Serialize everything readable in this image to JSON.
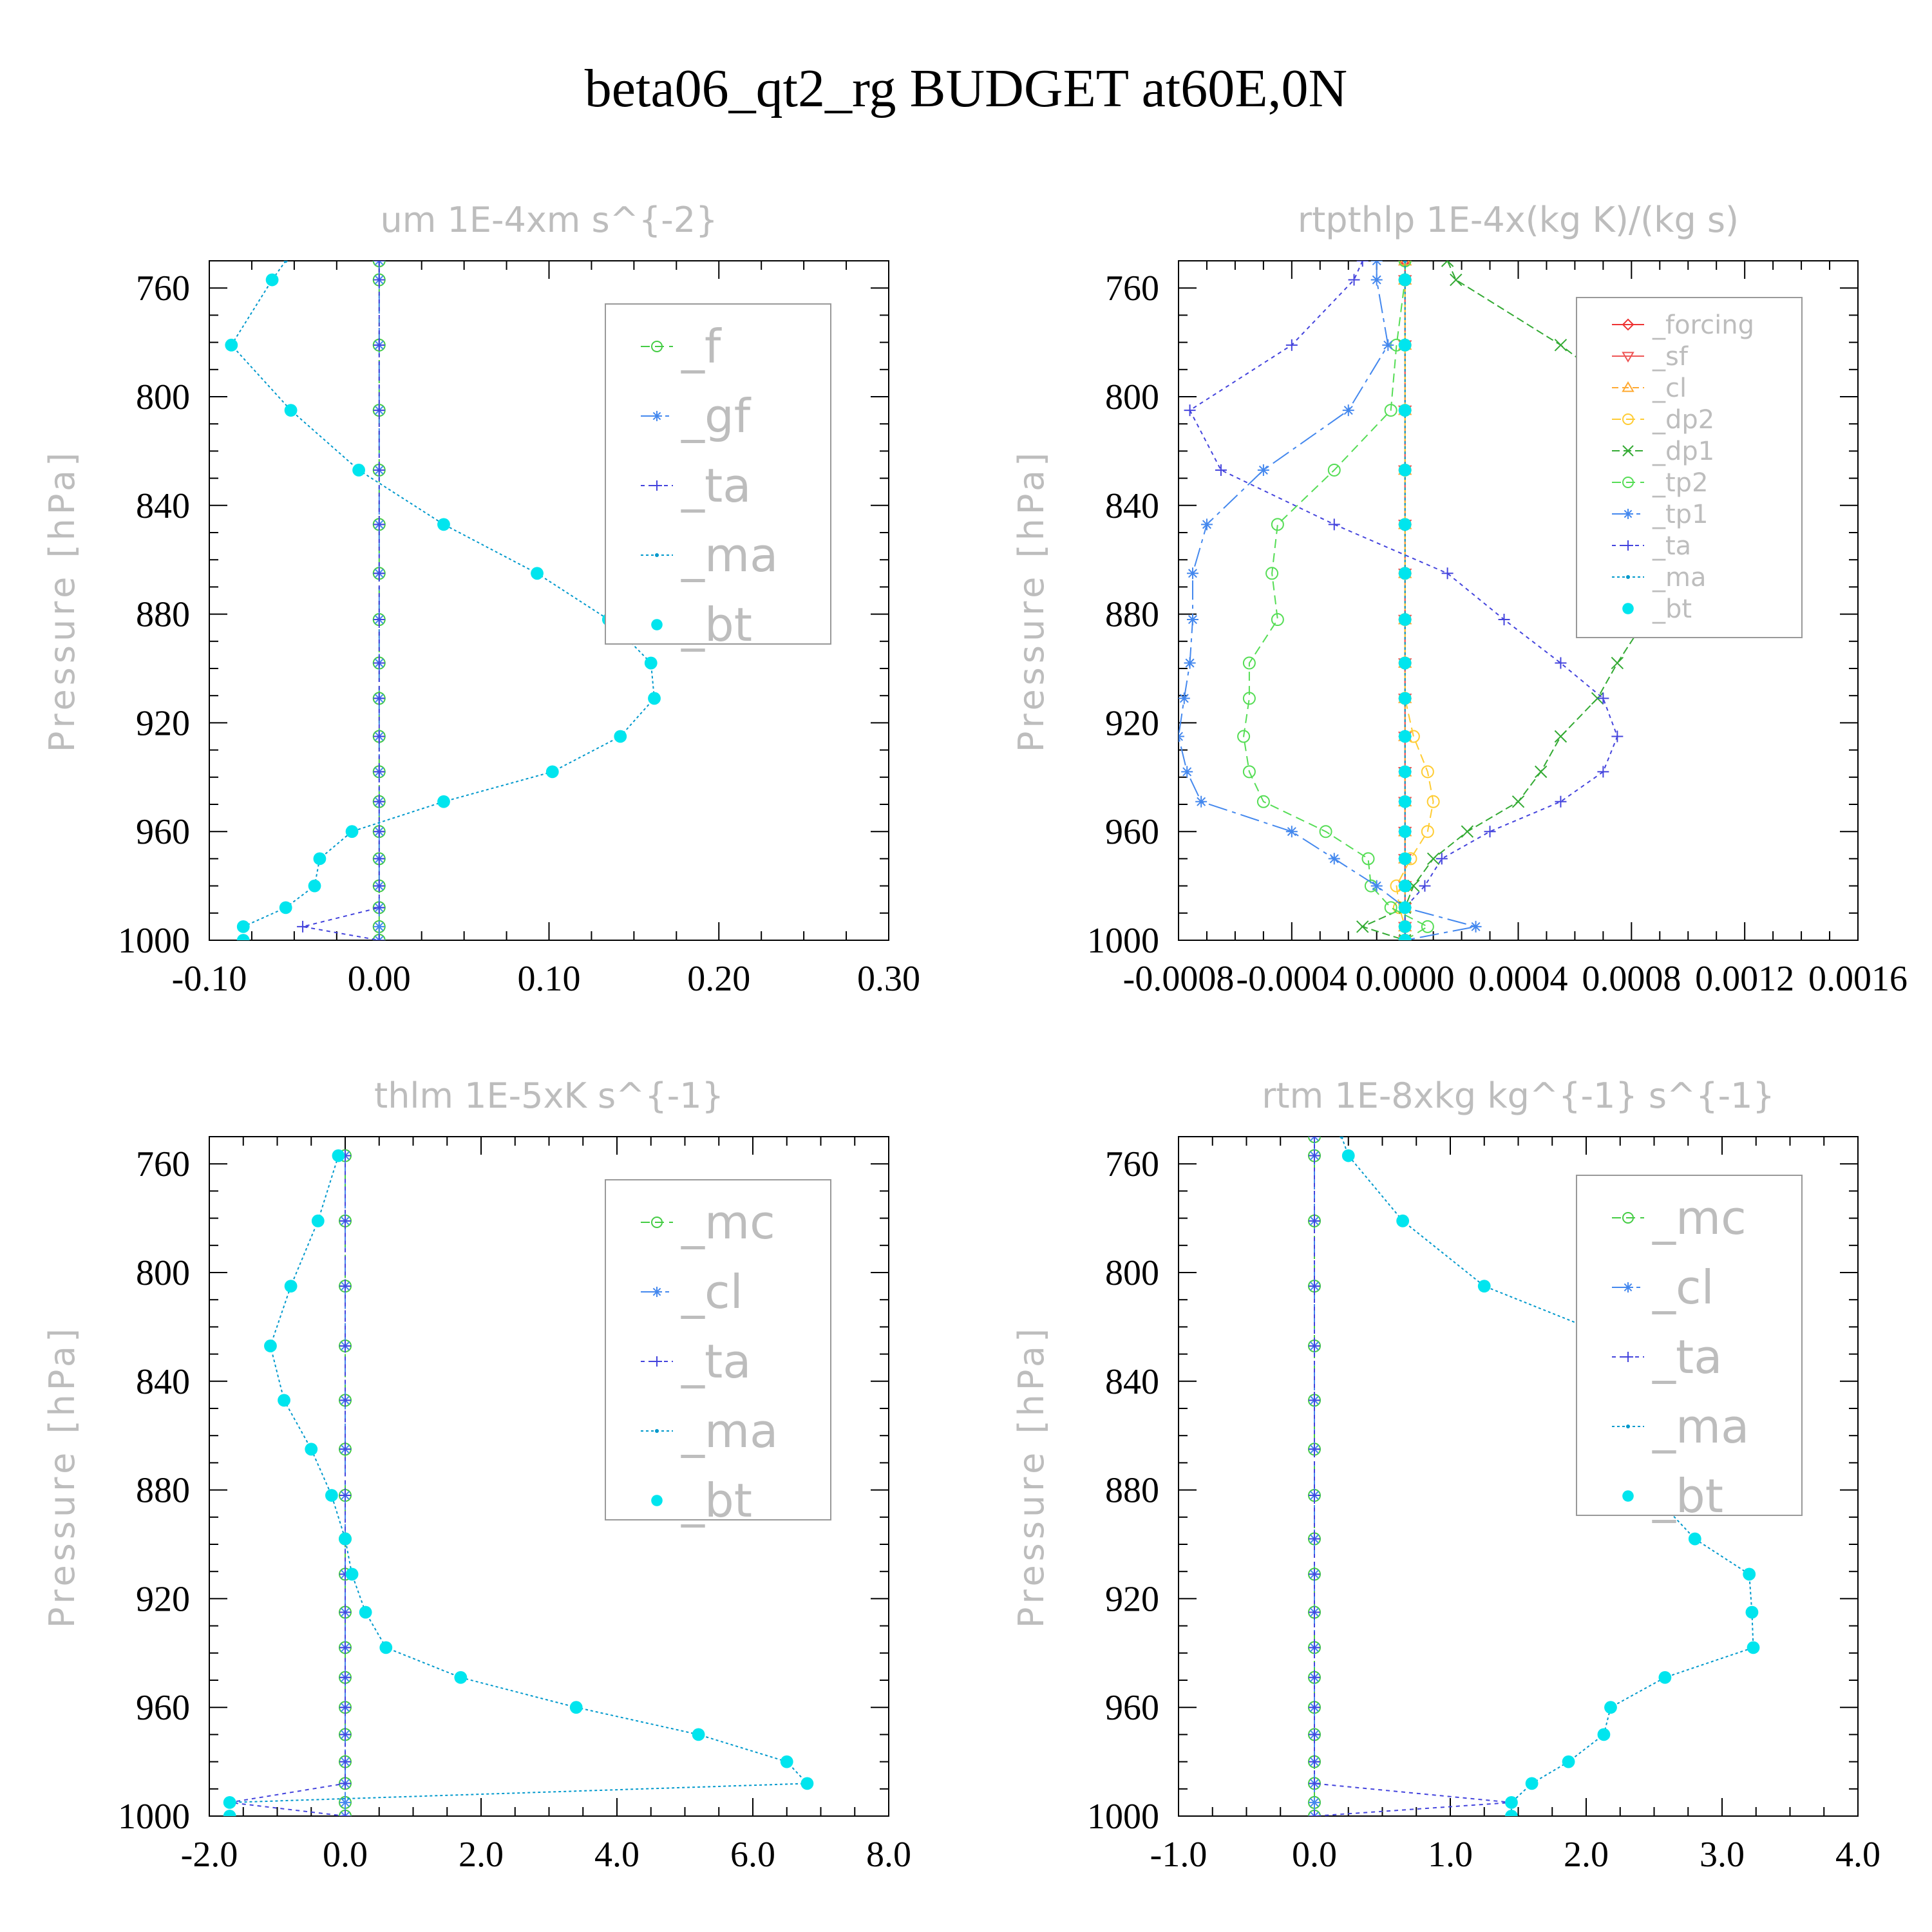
{
  "figure_title": "beta06_qt2_rg  BUDGET at60E,0N",
  "chart_data": [
    {
      "type": "line",
      "title": "um   1E-4xm s^{-2}",
      "ylabel": "Pressure [hPa]",
      "xlim": [
        -0.1,
        0.3
      ],
      "ylim": [
        1000,
        750
      ],
      "xticks": [
        -0.1,
        0.0,
        0.1,
        0.2,
        0.3
      ],
      "xtick_labels": [
        "-0.10",
        "0.00",
        "0.10",
        "0.20",
        "0.30"
      ],
      "yticks": [
        760,
        800,
        840,
        880,
        920,
        960,
        1000
      ],
      "ytick_labels": [
        "760",
        "800",
        "840",
        "880",
        "920",
        "960",
        "1000"
      ],
      "legend_position": "top-right",
      "legend_fontsize": "large",
      "y": [
        750,
        757,
        781,
        805,
        827,
        847,
        865,
        882,
        898,
        911,
        925,
        938,
        949,
        960,
        970,
        980,
        988,
        995,
        1000
      ],
      "series": [
        {
          "name": "_f",
          "color": "#44cc44",
          "marker": "circle",
          "values": [
            0,
            0,
            0,
            0,
            0,
            0,
            0,
            0,
            0,
            0,
            0,
            0,
            0,
            0,
            0,
            0,
            0,
            0,
            0
          ]
        },
        {
          "name": "_gf",
          "color": "#4488ee",
          "marker": "asterisk",
          "values": [
            0,
            0,
            0,
            0,
            0,
            0,
            0,
            0,
            0,
            0,
            0,
            0,
            0,
            0,
            0,
            0,
            0,
            0,
            0
          ]
        },
        {
          "name": "_ta",
          "color": "#4444dd",
          "marker": "plus",
          "values": [
            0,
            0,
            0,
            0,
            0,
            0,
            0,
            0,
            0,
            0,
            0,
            0,
            0,
            0,
            0,
            0,
            0,
            -0.045,
            0.0
          ]
        },
        {
          "name": "_ma",
          "color": "#0099cc",
          "marker": "dot",
          "values": [
            -0.055,
            -0.063,
            -0.087,
            -0.052,
            -0.012,
            0.038,
            0.093,
            0.135,
            0.16,
            0.162,
            0.142,
            0.102,
            0.038,
            -0.016,
            -0.035,
            -0.038,
            -0.055,
            -0.08,
            -0.08
          ]
        },
        {
          "name": "_bt",
          "color": "#00e5ee",
          "marker": "filled-circle",
          "values": [
            null,
            -0.063,
            -0.087,
            -0.052,
            -0.012,
            0.038,
            0.093,
            0.135,
            0.16,
            0.162,
            0.142,
            0.102,
            0.038,
            -0.016,
            -0.035,
            -0.038,
            -0.055,
            -0.08,
            -0.08
          ]
        }
      ]
    },
    {
      "type": "line",
      "title": "rtpthlp   1E-4x(kg K)/(kg s)",
      "ylabel": "Pressure [hPa]",
      "xlim": [
        -0.0008,
        0.0016
      ],
      "ylim": [
        1000,
        750
      ],
      "xticks": [
        -0.0008,
        -0.0004,
        0.0,
        0.0004,
        0.0008,
        0.0012,
        0.0016
      ],
      "xtick_labels": [
        "-0.0008",
        "-0.0004",
        "0.0000",
        "0.0004",
        "0.0008",
        "0.0012",
        "0.0016"
      ],
      "yticks": [
        760,
        800,
        840,
        880,
        920,
        960,
        1000
      ],
      "ytick_labels": [
        "760",
        "800",
        "840",
        "880",
        "920",
        "960",
        "1000"
      ],
      "legend_position": "top-right",
      "legend_fontsize": "small",
      "y": [
        750,
        757,
        781,
        805,
        827,
        847,
        865,
        882,
        898,
        911,
        925,
        938,
        949,
        960,
        970,
        980,
        988,
        995,
        1000
      ],
      "series": [
        {
          "name": "_forcing",
          "color": "#ee3333",
          "marker": "diamond",
          "values": [
            0,
            0,
            0,
            0,
            0,
            0,
            0,
            0,
            0,
            0,
            0,
            0,
            0,
            0,
            0,
            0,
            0,
            0,
            0
          ]
        },
        {
          "name": "_sf",
          "color": "#ee5555",
          "marker": "triangle-down",
          "values": [
            0,
            0,
            0,
            0,
            0,
            0,
            0,
            0,
            0,
            0,
            0,
            0,
            0,
            0,
            0,
            0,
            0,
            0,
            0
          ]
        },
        {
          "name": "_cl",
          "color": "#ffaa33",
          "marker": "triangle-up",
          "values": [
            0,
            0,
            0,
            0,
            0,
            0,
            0,
            0,
            0,
            0,
            0,
            0,
            0,
            0,
            0,
            0,
            0,
            0,
            0
          ]
        },
        {
          "name": "_dp2",
          "color": "#ffcc33",
          "marker": "circle",
          "values": [
            0,
            0,
            0,
            0,
            0,
            0,
            0,
            0,
            0,
            0,
            3e-05,
            8e-05,
            0.0001,
            8e-05,
            2e-05,
            -3e-05,
            -2e-05,
            0.0,
            0.0
          ]
        },
        {
          "name": "_dp1",
          "color": "#33aa33",
          "marker": "x",
          "values": [
            0.00015,
            0.00018,
            0.00055,
            0.00085,
            0.00125,
            0.00128,
            0.00096,
            0.00085,
            0.00075,
            0.00068,
            0.00055,
            0.00048,
            0.0004,
            0.00022,
            0.0001,
            3e-05,
            0.0,
            -0.00015,
            0.0
          ]
        },
        {
          "name": "_tp2",
          "color": "#55dd55",
          "marker": "circle",
          "values": [
            0.0,
            0.0,
            -3e-05,
            -5e-05,
            -0.00025,
            -0.00045,
            -0.00047,
            -0.00045,
            -0.00055,
            -0.00055,
            -0.00057,
            -0.00055,
            -0.0005,
            -0.00028,
            -0.00013,
            -0.00012,
            -5e-05,
            8e-05,
            0.0
          ]
        },
        {
          "name": "_tp1",
          "color": "#4488ee",
          "marker": "asterisk",
          "values": [
            -0.0001,
            -0.0001,
            -6e-05,
            -0.0002,
            -0.0005,
            -0.0007,
            -0.00075,
            -0.00075,
            -0.00076,
            -0.00078,
            -0.0008,
            -0.00077,
            -0.00072,
            -0.0004,
            -0.00025,
            -0.0001,
            0.0,
            0.00025,
            0.0
          ]
        },
        {
          "name": "_ta",
          "color": "#4444dd",
          "marker": "plus",
          "values": [
            -0.00015,
            -0.00018,
            -0.0004,
            -0.00076,
            -0.00065,
            -0.00025,
            0.00015,
            0.00035,
            0.00055,
            0.0007,
            0.00075,
            0.0007,
            0.00055,
            0.0003,
            0.00013,
            7e-05,
            0.0,
            0.0,
            0.0
          ]
        },
        {
          "name": "_ma",
          "color": "#0099cc",
          "marker": "dot",
          "values": [
            0,
            0,
            0,
            0,
            0,
            0,
            0,
            0,
            0,
            0,
            0,
            0,
            0,
            0,
            0,
            0,
            0,
            0,
            0
          ]
        },
        {
          "name": "_bt",
          "color": "#00e5ee",
          "marker": "filled-circle",
          "values": [
            null,
            0,
            0,
            0,
            0,
            0,
            0,
            0,
            0,
            0,
            0,
            0,
            0,
            0,
            0,
            0,
            0,
            0,
            0
          ]
        }
      ]
    },
    {
      "type": "line",
      "title": "thlm   1E-5xK s^{-1}",
      "ylabel": "Pressure [hPa]",
      "xlim": [
        -2.0,
        8.0
      ],
      "ylim": [
        1000,
        750
      ],
      "xticks": [
        -2.0,
        0.0,
        2.0,
        4.0,
        6.0,
        8.0
      ],
      "xtick_labels": [
        "-2.0",
        "0.0",
        "2.0",
        "4.0",
        "6.0",
        "8.0"
      ],
      "yticks": [
        760,
        800,
        840,
        880,
        920,
        960,
        1000
      ],
      "ytick_labels": [
        "760",
        "800",
        "840",
        "880",
        "920",
        "960",
        "1000"
      ],
      "legend_position": "top-right",
      "legend_fontsize": "large",
      "y": [
        757,
        781,
        805,
        827,
        847,
        865,
        882,
        898,
        911,
        925,
        938,
        949,
        960,
        970,
        980,
        988,
        995,
        1000
      ],
      "series": [
        {
          "name": "_mc",
          "color": "#44cc44",
          "marker": "circle",
          "values": [
            0,
            0,
            0,
            0,
            0,
            0,
            0,
            0,
            0,
            0,
            0,
            0,
            0,
            0,
            0,
            0,
            0,
            0
          ]
        },
        {
          "name": "_cl",
          "color": "#4488ee",
          "marker": "asterisk",
          "values": [
            0,
            0,
            0,
            0,
            0,
            0,
            0,
            0,
            0,
            0,
            0,
            0,
            0,
            0,
            0,
            0,
            0,
            0
          ]
        },
        {
          "name": "_ta",
          "color": "#4444dd",
          "marker": "plus",
          "values": [
            0,
            0,
            0,
            0,
            0,
            0,
            0,
            0,
            0,
            0,
            0,
            0,
            0,
            0,
            0,
            0,
            -1.7,
            0.0
          ]
        },
        {
          "name": "_ma",
          "color": "#0099cc",
          "marker": "dot",
          "values": [
            -0.1,
            -0.4,
            -0.8,
            -1.1,
            -0.9,
            -0.5,
            -0.2,
            0.0,
            0.1,
            0.3,
            0.6,
            1.7,
            3.4,
            5.2,
            6.5,
            6.8,
            -1.7,
            -1.7
          ]
        },
        {
          "name": "_bt",
          "color": "#00e5ee",
          "marker": "filled-circle",
          "values": [
            -0.1,
            -0.4,
            -0.8,
            -1.1,
            -0.9,
            -0.5,
            -0.2,
            0.0,
            0.1,
            0.3,
            0.6,
            1.7,
            3.4,
            5.2,
            6.5,
            6.8,
            -1.7,
            -1.7
          ]
        }
      ]
    },
    {
      "type": "line",
      "title": "rtm   1E-8xkg kg^{-1} s^{-1}",
      "ylabel": "Pressure [hPa]",
      "xlim": [
        -1.0,
        4.0
      ],
      "ylim": [
        1000,
        750
      ],
      "xticks": [
        -1.0,
        0.0,
        1.0,
        2.0,
        3.0,
        4.0
      ],
      "xtick_labels": [
        "-1.0",
        "0.0",
        "1.0",
        "2.0",
        "3.0",
        "4.0"
      ],
      "yticks": [
        760,
        800,
        840,
        880,
        920,
        960,
        1000
      ],
      "ytick_labels": [
        "760",
        "800",
        "840",
        "880",
        "920",
        "960",
        "1000"
      ],
      "legend_position": "top-right",
      "legend_fontsize": "large",
      "y": [
        750,
        757,
        781,
        805,
        827,
        847,
        865,
        882,
        898,
        911,
        925,
        938,
        949,
        960,
        970,
        980,
        988,
        995,
        1000
      ],
      "series": [
        {
          "name": "_mc",
          "color": "#44cc44",
          "marker": "circle",
          "values": [
            0,
            0,
            0,
            0,
            0,
            0,
            0,
            0,
            0,
            0,
            0,
            0,
            0,
            0,
            0,
            0,
            0,
            0,
            0
          ]
        },
        {
          "name": "_cl",
          "color": "#4488ee",
          "marker": "asterisk",
          "values": [
            0,
            0,
            0,
            0,
            0,
            0,
            0,
            0,
            0,
            0,
            0,
            0,
            0,
            0,
            0,
            0,
            0,
            0,
            0
          ]
        },
        {
          "name": "_ta",
          "color": "#4444dd",
          "marker": "plus",
          "values": [
            0,
            0,
            0,
            0,
            0,
            0,
            0,
            0,
            0,
            0,
            0,
            0,
            0,
            0,
            0,
            0,
            0,
            1.45,
            0.0
          ]
        },
        {
          "name": "_ma",
          "color": "#0099cc",
          "marker": "dot",
          "values": [
            0.2,
            0.25,
            0.65,
            1.25,
            2.35,
            2.8,
            2.55,
            2.5,
            2.8,
            3.2,
            3.22,
            3.23,
            2.58,
            2.18,
            2.13,
            1.87,
            1.6,
            1.45,
            1.45
          ]
        },
        {
          "name": "_bt",
          "color": "#00e5ee",
          "marker": "filled-circle",
          "values": [
            null,
            0.25,
            0.65,
            1.25,
            2.35,
            2.8,
            2.55,
            2.5,
            2.8,
            3.2,
            3.22,
            3.23,
            2.58,
            2.18,
            2.13,
            1.87,
            1.6,
            1.45,
            1.45
          ]
        }
      ]
    }
  ]
}
